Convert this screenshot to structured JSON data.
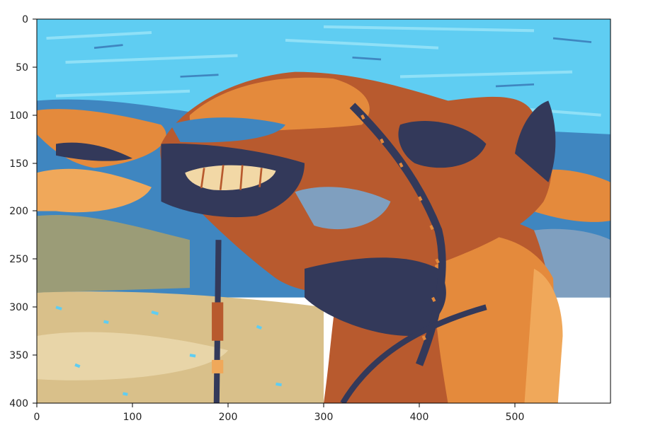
{
  "figure": {
    "type": "image-display",
    "description_free": true,
    "palette": {
      "sky": "#5fcdf2",
      "sky_light": "#8fe0f7",
      "blue_mid": "#3f86c0",
      "blue_gray": "#7f9fbf",
      "navy": "#33395a",
      "rust": "#b85a2e",
      "orange": "#e48a3c",
      "orange_light": "#f0a85a",
      "sand": "#d9c08a",
      "sand_light": "#e8d5a8",
      "olive": "#9b9c77",
      "cream": "#f2d8a6",
      "axis": "#000000"
    }
  },
  "axes": {
    "x": {
      "range": [
        0,
        600
      ],
      "ticks": [
        0,
        100,
        200,
        300,
        400,
        500
      ],
      "tick_labels": [
        "0",
        "100",
        "200",
        "300",
        "400",
        "500"
      ]
    },
    "y": {
      "range": [
        0,
        400
      ],
      "inverted": true,
      "ticks": [
        0,
        50,
        100,
        150,
        200,
        250,
        300,
        350,
        400
      ],
      "tick_labels": [
        "0",
        "50",
        "100",
        "150",
        "200",
        "250",
        "300",
        "350",
        "400"
      ]
    }
  }
}
